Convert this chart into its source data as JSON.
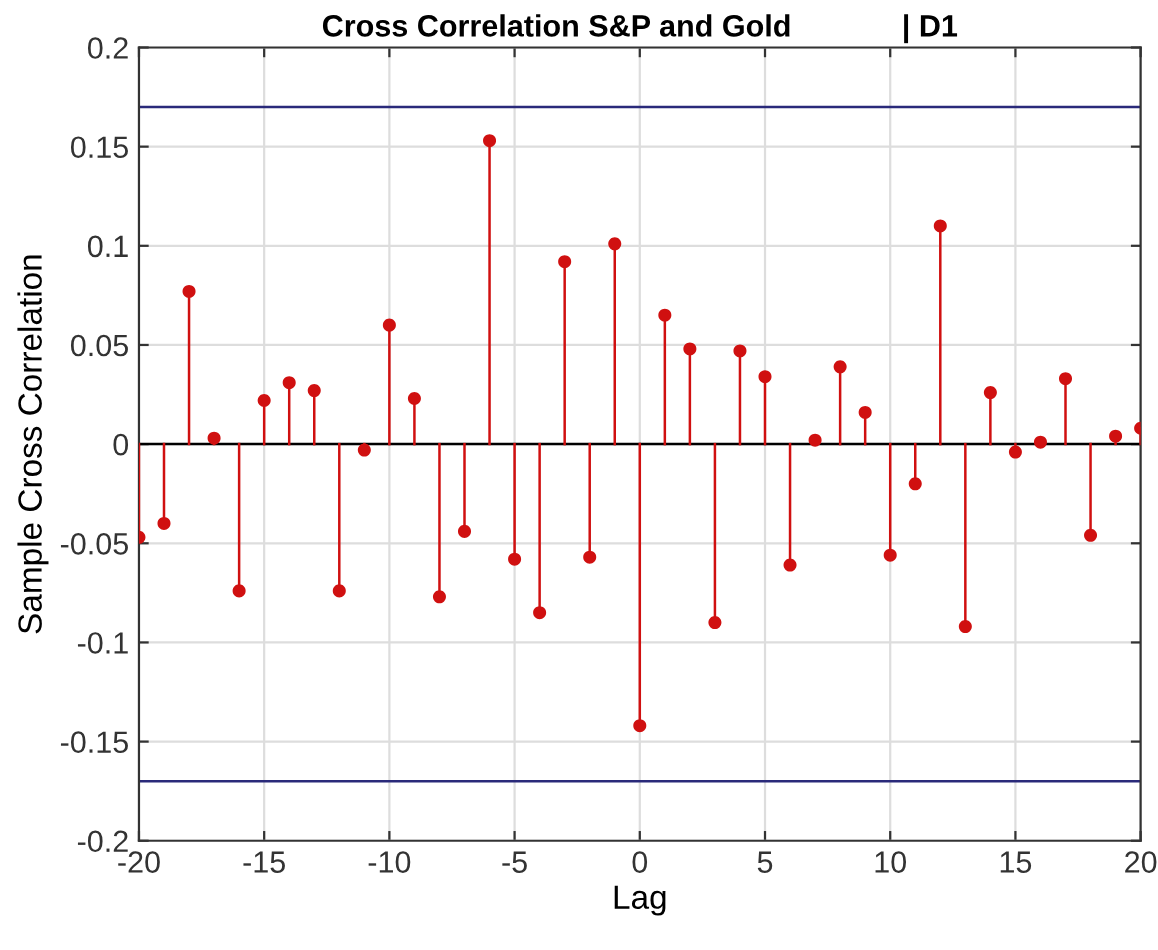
{
  "chart_data": {
    "type": "lollipop",
    "title": "Cross Correlation S&P and Gold             | D1",
    "xlabel": "Lag",
    "ylabel": "Sample Cross Correlation",
    "x": [
      -20,
      -19,
      -18,
      -17,
      -16,
      -15,
      -14,
      -13,
      -12,
      -11,
      -10,
      -9,
      -8,
      -7,
      -6,
      -5,
      -4,
      -3,
      -2,
      -1,
      0,
      1,
      2,
      3,
      4,
      5,
      6,
      7,
      8,
      9,
      10,
      11,
      12,
      13,
      14,
      15,
      16,
      17,
      18,
      19,
      20
    ],
    "values": [
      -0.047,
      -0.04,
      0.077,
      0.003,
      -0.074,
      0.022,
      0.031,
      0.027,
      -0.074,
      -0.003,
      0.06,
      0.023,
      -0.077,
      -0.044,
      0.153,
      -0.058,
      -0.085,
      0.092,
      -0.057,
      0.101,
      -0.142,
      0.065,
      0.048,
      -0.09,
      0.047,
      0.034,
      -0.061,
      0.002,
      0.039,
      0.016,
      -0.056,
      -0.02,
      0.11,
      -0.092,
      0.026,
      -0.004,
      0.001,
      0.033,
      -0.046,
      0.004,
      0.008
    ],
    "color": "#d01010",
    "marker": "circle",
    "xlim": [
      -20,
      20
    ],
    "xticks": [
      -20,
      -15,
      -10,
      -5,
      0,
      5,
      10,
      15,
      20
    ],
    "ylim": [
      -0.2,
      0.2
    ],
    "yticks": [
      -0.2,
      -0.15,
      -0.1,
      -0.05,
      0,
      0.05,
      0.1,
      0.15,
      0.2
    ],
    "ref_lines": [
      {
        "axis": "y",
        "value": 0.17,
        "color": "#2a2a7a"
      },
      {
        "axis": "y",
        "value": -0.17,
        "color": "#2a2a7a"
      },
      {
        "axis": "y",
        "value": 0,
        "color": "#000000"
      }
    ],
    "grid": true
  }
}
